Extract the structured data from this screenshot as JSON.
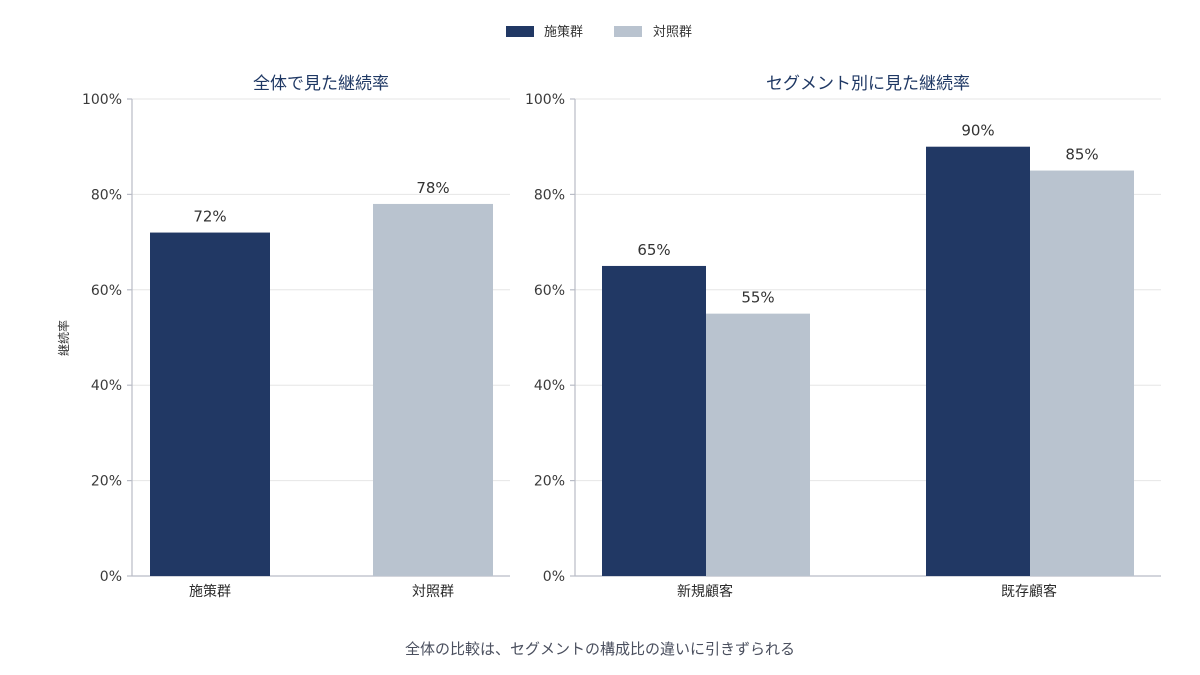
{
  "legend": [
    {
      "name": "施策群",
      "color": "#213864"
    },
    {
      "name": "対照群",
      "color": "#b9c3cf"
    }
  ],
  "y_axis_label": "継続率",
  "caption": "全体の比較は、セグメントの構成比の違いに引きずられる",
  "y_ticks": [
    "0%",
    "20%",
    "40%",
    "60%",
    "80%",
    "100%"
  ],
  "chart_data": [
    {
      "type": "bar",
      "title": "全体で見た継続率",
      "ylabel": "継続率",
      "ylim": [
        0,
        100
      ],
      "grid": true,
      "categories": [
        "施策群",
        "対照群"
      ],
      "values": [
        72,
        78
      ],
      "value_labels": [
        "72%",
        "78%"
      ],
      "colors": [
        "#213864",
        "#b9c3cf"
      ]
    },
    {
      "type": "bar",
      "title": "セグメント別に見た継続率",
      "ylim": [
        0,
        100
      ],
      "grid": true,
      "categories": [
        "新規顧客",
        "既存顧客"
      ],
      "series": [
        {
          "name": "施策群",
          "values": [
            65,
            90
          ],
          "value_labels": [
            "65%",
            "90%"
          ],
          "color": "#213864"
        },
        {
          "name": "対照群",
          "values": [
            55,
            85
          ],
          "value_labels": [
            "55%",
            "85%"
          ],
          "color": "#b9c3cf"
        }
      ]
    }
  ]
}
